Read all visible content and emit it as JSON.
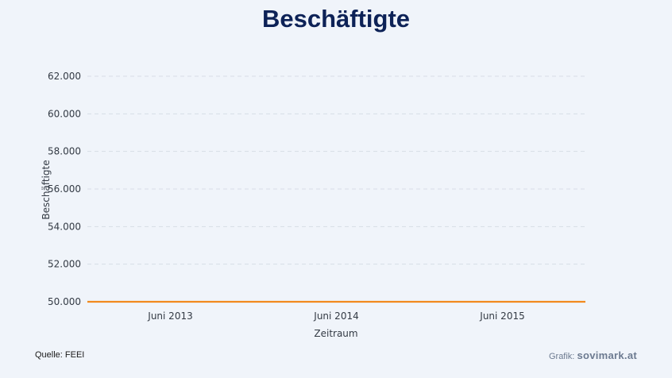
{
  "chart_data": {
    "type": "line",
    "title": "Beschäftigte",
    "xlabel": "Zeitraum",
    "ylabel": "Beschäftigte",
    "categories": [
      "Juni 2013",
      "Juni 2014",
      "Juni 2015"
    ],
    "series": [
      {
        "values": [
          50000,
          50000,
          50000
        ],
        "color": "#f28a1e"
      }
    ],
    "ylim": [
      50000,
      62000
    ],
    "yticks": [
      50000,
      52000,
      54000,
      56000,
      58000,
      60000,
      62000
    ],
    "ytick_labels": [
      "50.000",
      "52.000",
      "54.000",
      "56.000",
      "58.000",
      "60.000",
      "62.000"
    ],
    "grid": true
  },
  "footer": {
    "source": "Quelle: FEEI",
    "credit_prefix": "Grafik:",
    "credit_brand": "sovimark.at"
  }
}
